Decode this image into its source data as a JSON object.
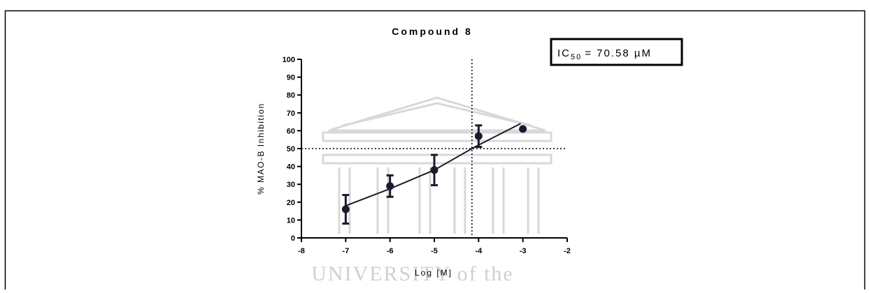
{
  "chart_data": {
    "type": "scatter",
    "title": "Compound 8",
    "x_label": "Log [M]",
    "y_label": "% MAO-B Inhibition",
    "annotation": {
      "text": "IC",
      "subscript": "50",
      "text_after": "= 70.58 µM"
    },
    "watermark": "UNIVERSITY of the",
    "series": [
      {
        "color": "#1a1a2e",
        "x": [
          -7,
          -6,
          -5,
          -4,
          -3
        ],
        "values": [
          16,
          29,
          38,
          57,
          61
        ],
        "errors": [
          8,
          6,
          8.5,
          6,
          null
        ]
      }
    ],
    "fit_curve": {
      "color": "#1a1a2e",
      "x": [
        -7,
        -6,
        -5,
        -4.15,
        -4,
        -3.05
      ],
      "values": [
        18,
        27.5,
        38,
        50,
        52,
        64
      ]
    },
    "reference_lines": {
      "x": -4.15,
      "y": 50
    },
    "xlim": [
      -8,
      -2
    ],
    "xticks": [
      -8,
      -7,
      -6,
      -5,
      -4,
      -3,
      -2
    ],
    "ylim": [
      0,
      100
    ],
    "yticks": [
      0,
      10,
      20,
      30,
      40,
      50,
      60,
      70,
      80,
      90,
      100
    ]
  }
}
